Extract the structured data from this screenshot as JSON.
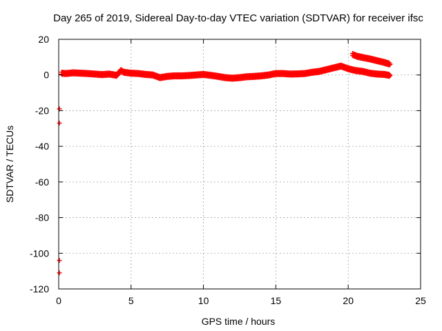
{
  "chart_data": {
    "type": "scatter",
    "title": "Day 265 of 2019, Sidereal Day-to-day VTEC variation (SDTVAR) for receiver ifsc",
    "xlabel": "GPS time / hours",
    "ylabel": "SDTVAR / TECUs",
    "xlim": [
      0,
      25
    ],
    "ylim": [
      -120,
      20
    ],
    "xticks": [
      0,
      5,
      10,
      15,
      20,
      25
    ],
    "yticks": [
      -120,
      -100,
      -80,
      -60,
      -40,
      -20,
      0,
      20
    ],
    "grid": true,
    "marker_color": "#ff0000",
    "series": [
      {
        "values": [
          [
            0.05,
            -19
          ],
          [
            0.05,
            -27
          ],
          [
            0.05,
            -104
          ],
          [
            0.05,
            -111
          ],
          [
            0.2,
            1
          ],
          [
            0.5,
            0.8
          ],
          [
            1.0,
            1.2
          ],
          [
            1.5,
            1.0
          ],
          [
            2.0,
            0.8
          ],
          [
            2.5,
            0.5
          ],
          [
            3.0,
            0.2
          ],
          [
            3.5,
            0.5
          ],
          [
            4.0,
            -0.2
          ],
          [
            4.3,
            2.5
          ],
          [
            4.5,
            1.5
          ],
          [
            5.0,
            1.0
          ],
          [
            5.5,
            0.8
          ],
          [
            6.0,
            0.3
          ],
          [
            6.5,
            0.0
          ],
          [
            7.0,
            -1.5
          ],
          [
            7.5,
            -0.8
          ],
          [
            8.0,
            -0.5
          ],
          [
            8.5,
            -0.5
          ],
          [
            9.0,
            -0.3
          ],
          [
            9.5,
            0.0
          ],
          [
            10.0,
            0.3
          ],
          [
            10.5,
            -0.2
          ],
          [
            11.0,
            -0.8
          ],
          [
            11.5,
            -1.5
          ],
          [
            12.0,
            -1.8
          ],
          [
            12.5,
            -1.5
          ],
          [
            13.0,
            -1.0
          ],
          [
            13.5,
            -0.8
          ],
          [
            14.0,
            -0.5
          ],
          [
            14.5,
            0.0
          ],
          [
            15.0,
            0.8
          ],
          [
            15.5,
            0.8
          ],
          [
            16.0,
            0.5
          ],
          [
            16.5,
            0.6
          ],
          [
            17.0,
            0.8
          ],
          [
            17.5,
            1.5
          ],
          [
            18.0,
            2.0
          ],
          [
            18.5,
            3.0
          ],
          [
            19.0,
            4.0
          ],
          [
            19.5,
            5.0
          ],
          [
            20.0,
            3.5
          ],
          [
            20.5,
            2.5
          ],
          [
            21.0,
            2.0
          ],
          [
            21.5,
            1.0
          ],
          [
            22.0,
            0.5
          ],
          [
            22.5,
            0.3
          ],
          [
            22.9,
            -0.3
          ],
          [
            20.3,
            11.5
          ],
          [
            20.6,
            10.5
          ],
          [
            21.0,
            9.8
          ],
          [
            21.5,
            9.0
          ],
          [
            22.0,
            8.0
          ],
          [
            22.5,
            7.0
          ],
          [
            22.9,
            6.0
          ]
        ]
      }
    ]
  }
}
